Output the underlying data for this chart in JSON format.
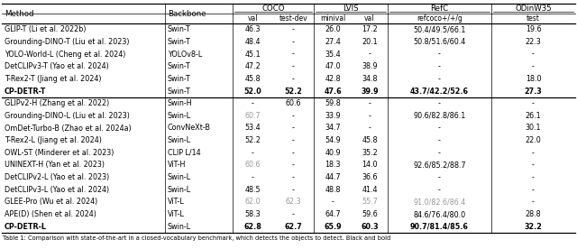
{
  "col_boundaries": [
    2,
    183,
    258,
    303,
    348,
    390,
    430,
    545,
    638
  ],
  "rows_group1": [
    [
      "GLIP-T (Li et al. 2022b)",
      "Swin-T",
      "46.3",
      "-",
      "26.0",
      "17.2",
      "50.4/49.5/66.1",
      "19.6"
    ],
    [
      "Grounding-DINO-T (Liu et al. 2023)",
      "Swin-T",
      "48.4",
      "-",
      "27.4",
      "20.1",
      "50.8/51.6/60.4",
      "22.3"
    ],
    [
      "YOLO-World-L (Cheng et al. 2024)",
      "YOLOv8-L",
      "45.1",
      "-",
      "35.4",
      "-",
      "-",
      "-"
    ],
    [
      "DetCLIPv3-T (Yao et al. 2024)",
      "Swin-T",
      "47.2",
      "-",
      "47.0",
      "38.9",
      "-",
      "-"
    ],
    [
      "T-Rex2-T (Jiang et al. 2024)",
      "Swin-T",
      "45.8",
      "-",
      "42.8",
      "34.8",
      "-",
      "18.0"
    ],
    [
      "CP-DETR-T",
      "Swin-T",
      "52.0",
      "52.2",
      "47.6",
      "39.9",
      "43.7/42.2/52.6",
      "27.3"
    ]
  ],
  "rows_group2": [
    [
      "GLIPv2-H (Zhang et al. 2022)",
      "Swin-H",
      "-",
      "60.6",
      "59.8",
      "-",
      "-",
      "-"
    ],
    [
      "Grounding-DINO-L (Liu et al. 2023)",
      "Swin-L",
      "60.7",
      "-",
      "33.9",
      "-",
      "90.6/82.8/86.1",
      "26.1"
    ],
    [
      "OmDet-Turbo-B (Zhao et al. 2024a)",
      "ConvNeXt-B",
      "53.4",
      "-",
      "34.7",
      "-",
      "-",
      "30.1"
    ],
    [
      "T-Rex2-L (Jiang et al. 2024)",
      "Swin-L",
      "52.2",
      "-",
      "54.9",
      "45.8",
      "-",
      "22.0"
    ],
    [
      "OWL-ST (Minderer et al. 2023)",
      "CLIP L/14",
      "-",
      "-",
      "40.9",
      "35.2",
      "-",
      "-"
    ],
    [
      "UNINEXT-H (Yan et al. 2023)",
      "ViT-H",
      "60.6",
      "-",
      "18.3",
      "14.0",
      "92.6/85.2/88.7",
      "-"
    ],
    [
      "DetCLIPv2-L (Yao et al. 2023)",
      "Swin-L",
      "-",
      "-",
      "44.7",
      "36.6",
      "-",
      "-"
    ],
    [
      "DetCLIPv3-L (Yao et al. 2024)",
      "Swin-L",
      "48.5",
      "-",
      "48.8",
      "41.4",
      "-",
      "-"
    ],
    [
      "GLEE-Pro (Wu et al. 2024)",
      "ViT-L",
      "62.0",
      "62.3",
      "-",
      "55.7",
      "91.0/82.6/86.4",
      "-"
    ],
    [
      "APE(D) (Shen et al. 2024)",
      "ViT-L",
      "58.3",
      "-",
      "64.7",
      "59.6",
      "84.6/76.4/80.0",
      "28.8"
    ],
    [
      "CP-DETR-L",
      "Swin-L",
      "62.8",
      "62.7",
      "65.9",
      "60.3",
      "90.7/81.4/85.6",
      "32.2"
    ]
  ],
  "gray_cells": {
    "g2_row1": [
      2
    ],
    "g2_row5": [
      2
    ],
    "g2_row8": [
      2,
      3,
      5,
      6
    ]
  },
  "bold_rows_g1": [
    5
  ],
  "bold_rows_g2": [
    10
  ],
  "font_size": 5.8,
  "header_font_size": 6.2,
  "caption": "Table 1: Comparison with state-of-the-art in a closed-vocabulary benchmark, which detects the objects to detect. Black and bold"
}
